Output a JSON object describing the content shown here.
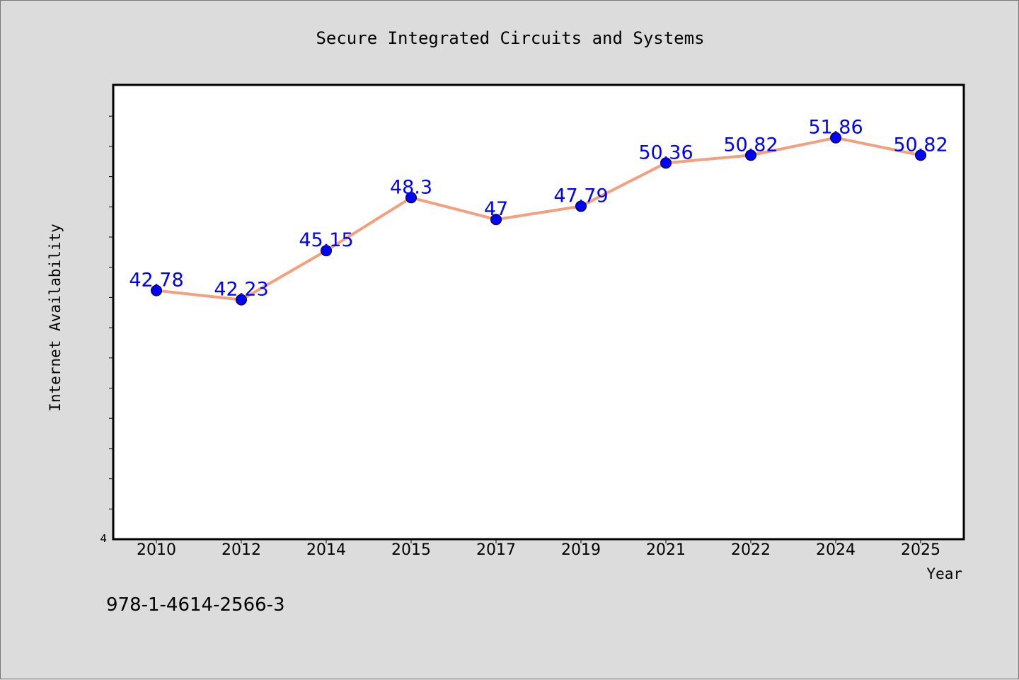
{
  "chart_data": {
    "type": "line",
    "title": "Secure Integrated Circuits and Systems",
    "xlabel": "Year",
    "ylabel": "Internet Availability",
    "categories": [
      "2010",
      "2012",
      "2014",
      "2015",
      "2017",
      "2019",
      "2021",
      "2022",
      "2024",
      "2025"
    ],
    "series": [
      {
        "values": [
          42.78,
          42.23,
          45.15,
          48.3,
          47,
          47.79,
          50.36,
          50.82,
          51.86,
          50.82
        ],
        "labels": [
          "42.78",
          "42.23",
          "45.15",
          "48.3",
          "47",
          "47.79",
          "50.36",
          "50.82",
          "51.86",
          "50.82"
        ]
      }
    ],
    "ylim": [
      28,
      55
    ],
    "y_tick_label": "4",
    "grid": false,
    "line_color": "#f4a07f",
    "marker_color": "#0000ff",
    "label_color": "#0000ff"
  },
  "isbn": "978-1-4614-2566-3"
}
